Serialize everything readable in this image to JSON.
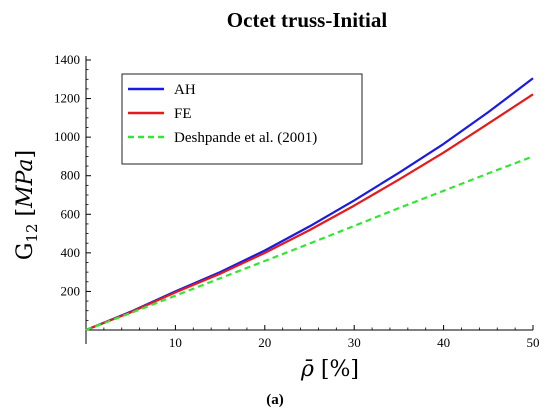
{
  "chart_data": {
    "type": "line",
    "title": "Octet truss-Initial",
    "xlabel": "ρ̄ [%]",
    "ylabel": "G12 [MPa]",
    "xlim": [
      0,
      50
    ],
    "ylim": [
      0,
      1400
    ],
    "xticks": [
      10,
      20,
      30,
      40,
      50
    ],
    "yticks": [
      200,
      400,
      600,
      800,
      1000,
      1200,
      1400
    ],
    "grid": false,
    "legend_position": "top-left",
    "series": [
      {
        "name": "AH",
        "color": "#1a1ae6",
        "style": "solid",
        "x": [
          0,
          5,
          10,
          15,
          20,
          25,
          30,
          35,
          40,
          45,
          50
        ],
        "y": [
          0,
          95,
          200,
          300,
          412,
          537,
          672,
          815,
          965,
          1130,
          1305
        ]
      },
      {
        "name": "FE",
        "color": "#e61a1a",
        "style": "solid",
        "x": [
          0,
          5,
          10,
          15,
          20,
          25,
          30,
          35,
          40,
          45,
          50
        ],
        "y": [
          0,
          92,
          195,
          292,
          400,
          518,
          645,
          780,
          920,
          1070,
          1222
        ]
      },
      {
        "name": "Deshpande et al. (2001)",
        "color": "#33e633",
        "style": "dashed",
        "x": [
          0,
          5,
          10,
          15,
          20,
          25,
          30,
          35,
          40,
          45,
          50
        ],
        "y": [
          0,
          88,
          178,
          268,
          358,
          448,
          540,
          632,
          722,
          812,
          900
        ]
      }
    ]
  },
  "caption": "(a)"
}
